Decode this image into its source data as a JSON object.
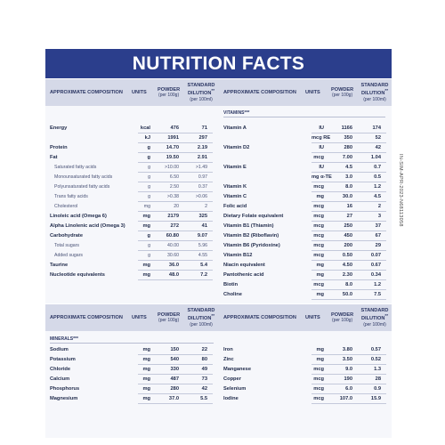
{
  "title": "NUTRITION FACTS",
  "headers": {
    "composition": "APPROXIMATE COMPOSITION",
    "units": "UNITS",
    "powder": "POWDER",
    "powder_sub": "(per 100g)",
    "standard": "STANDARD DILUTION",
    "standard_sup": "**",
    "standard_sub": "(per 100ml)"
  },
  "vitamins_label": "VITAMINS***",
  "minerals_label": "MINERALS***",
  "main_left": [
    {
      "name": "Energy",
      "unit": "kcal",
      "powder": "476",
      "standard": "71",
      "style": "bold"
    },
    {
      "name": "",
      "unit": "kJ",
      "powder": "1991",
      "standard": "297",
      "style": "bold"
    },
    {
      "name": "Protein",
      "unit": "g",
      "powder": "14.70",
      "standard": "2.19",
      "style": "bold"
    },
    {
      "name": "Fat",
      "unit": "g",
      "powder": "19.50",
      "standard": "2.91",
      "style": "bold"
    },
    {
      "name": "Saturated fatty acids",
      "unit": "g",
      "powder": ">10.00",
      "standard": ">1.49",
      "style": "light"
    },
    {
      "name": "Monounsaturated fatty acids",
      "unit": "g",
      "powder": "6.50",
      "standard": "0.97",
      "style": "light"
    },
    {
      "name": "Polyunsaturated fatty acids",
      "unit": "g",
      "powder": "2.50",
      "standard": "0.37",
      "style": "light"
    },
    {
      "name": "Trans fatty acids",
      "unit": "g",
      "powder": ">0.38",
      "standard": ">0.06",
      "style": "light"
    },
    {
      "name": "Cholesterol",
      "unit": "mg",
      "powder": "20",
      "standard": "2",
      "style": "light"
    },
    {
      "name": "Linoleic acid (Omega 6)",
      "unit": "mg",
      "powder": "2179",
      "standard": "325",
      "style": "bold"
    },
    {
      "name": "Alpha Linolenic acid (Omega 3)",
      "unit": "mg",
      "powder": "272",
      "standard": "41",
      "style": "bold"
    },
    {
      "name": "Carbohydrate",
      "unit": "g",
      "powder": "60.80",
      "standard": "9.07",
      "style": "bold"
    },
    {
      "name": "Total sugars",
      "unit": "g",
      "powder": "40.00",
      "standard": "5.96",
      "style": "light"
    },
    {
      "name": "Added sugars",
      "unit": "g",
      "powder": "30.60",
      "standard": "4.55",
      "style": "light"
    },
    {
      "name": "Taurine",
      "unit": "mg",
      "powder": "36.0",
      "standard": "5.4",
      "style": "bold"
    },
    {
      "name": "Nucleotide equivalents",
      "unit": "mg",
      "powder": "48.0",
      "standard": "7.2",
      "style": "bold"
    }
  ],
  "main_right": [
    {
      "name": "Vitamin A",
      "unit": "IU",
      "powder": "1166",
      "standard": "174",
      "style": "bold"
    },
    {
      "name": "",
      "unit": "mcg RE",
      "powder": "350",
      "standard": "52",
      "style": "bold"
    },
    {
      "name": "Vitamin D2",
      "unit": "IU",
      "powder": "280",
      "standard": "42",
      "style": "bold"
    },
    {
      "name": "",
      "unit": "mcg",
      "powder": "7.00",
      "standard": "1.04",
      "style": "bold"
    },
    {
      "name": "Vitamin E",
      "unit": "IU",
      "powder": "4.5",
      "standard": "0.7",
      "style": "bold"
    },
    {
      "name": "",
      "unit": "mg α-TE",
      "powder": "3.0",
      "standard": "0.5",
      "style": "bold"
    },
    {
      "name": "Vitamin K",
      "unit": "mcg",
      "powder": "8.0",
      "standard": "1.2",
      "style": "bold"
    },
    {
      "name": "Vitamin C",
      "unit": "mg",
      "powder": "30.0",
      "standard": "4.5",
      "style": "bold"
    },
    {
      "name": "Folic acid",
      "unit": "mcg",
      "powder": "16",
      "standard": "2",
      "style": "bold"
    },
    {
      "name": "Dietary Folate equivalent",
      "unit": "mcg",
      "powder": "27",
      "standard": "3",
      "style": "bold"
    },
    {
      "name": "Vitamin B1 (Thiamin)",
      "unit": "mcg",
      "powder": "250",
      "standard": "37",
      "style": "bold"
    },
    {
      "name": "Vitamin B2 (Riboflavin)",
      "unit": "mcg",
      "powder": "450",
      "standard": "67",
      "style": "bold"
    },
    {
      "name": "Vitamin B6 (Pyridoxine)",
      "unit": "mcg",
      "powder": "200",
      "standard": "29",
      "style": "bold"
    },
    {
      "name": "Vitamin B12",
      "unit": "mcg",
      "powder": "0.50",
      "standard": "0.07",
      "style": "bold"
    },
    {
      "name": "Niacin equivalent",
      "unit": "mg",
      "powder": "4.50",
      "standard": "0.67",
      "style": "bold"
    },
    {
      "name": "Pantothenic acid",
      "unit": "mg",
      "powder": "2.30",
      "standard": "0.34",
      "style": "bold"
    },
    {
      "name": "Biotin",
      "unit": "mcg",
      "powder": "8.0",
      "standard": "1.2",
      "style": "bold"
    },
    {
      "name": "Choline",
      "unit": "mg",
      "powder": "50.0",
      "standard": "7.5",
      "style": "bold"
    }
  ],
  "minerals_left": [
    {
      "name": "Sodium",
      "unit": "mg",
      "powder": "150",
      "standard": "22",
      "style": "bold"
    },
    {
      "name": "Potassium",
      "unit": "mg",
      "powder": "540",
      "standard": "80",
      "style": "bold"
    },
    {
      "name": "Chloride",
      "unit": "mg",
      "powder": "330",
      "standard": "49",
      "style": "bold"
    },
    {
      "name": "Calcium",
      "unit": "mg",
      "powder": "487",
      "standard": "73",
      "style": "bold"
    },
    {
      "name": "Phosphorus",
      "unit": "mg",
      "powder": "280",
      "standard": "42",
      "style": "bold"
    },
    {
      "name": "Magnesium",
      "unit": "mg",
      "powder": "37.0",
      "standard": "5.5",
      "style": "bold"
    }
  ],
  "minerals_right": [
    {
      "name": "Iron",
      "unit": "mg",
      "powder": "3.80",
      "standard": "0.57",
      "style": "bold"
    },
    {
      "name": "Zinc",
      "unit": "mg",
      "powder": "3.50",
      "standard": "0.52",
      "style": "bold"
    },
    {
      "name": "Manganese",
      "unit": "mcg",
      "powder": "9.0",
      "standard": "1.3",
      "style": "bold"
    },
    {
      "name": "Copper",
      "unit": "mcg",
      "powder": "190",
      "standard": "28",
      "style": "bold"
    },
    {
      "name": "Selenium",
      "unit": "mcg",
      "powder": "6.0",
      "standard": "0.9",
      "style": "bold"
    },
    {
      "name": "Iodine",
      "unit": "mcg",
      "powder": "107.0",
      "standard": "15.9",
      "style": "bold"
    }
  ],
  "side_code": "IN-SIM-APR-2023-N68113058"
}
